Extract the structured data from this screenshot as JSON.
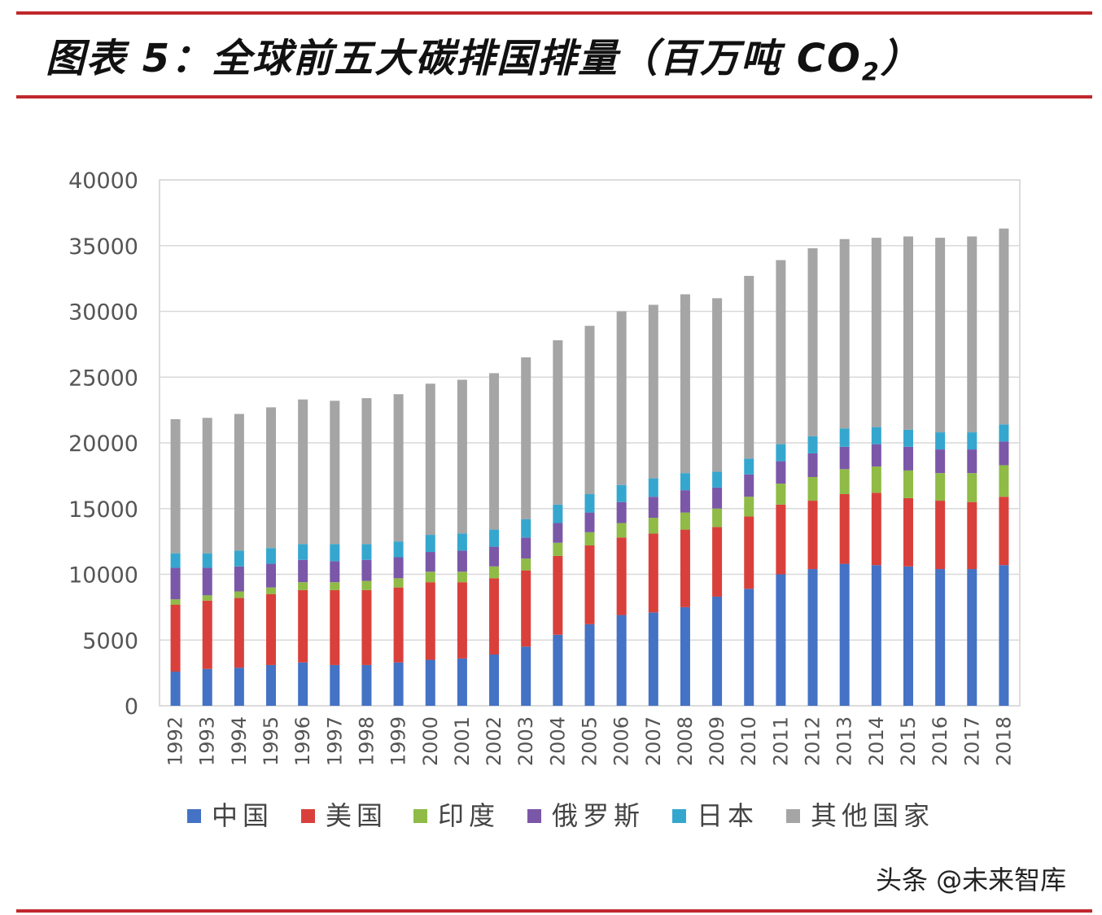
{
  "title": {
    "main": "图表 5：全球前五大碳排国排量（百万吨 CO",
    "sub": "2",
    "close": "）"
  },
  "watermark": "头条 @未来智库",
  "chart_data": {
    "type": "bar",
    "stacked": true,
    "categories": [
      "1992",
      "1993",
      "1994",
      "1995",
      "1996",
      "1997",
      "1998",
      "1999",
      "2000",
      "2001",
      "2002",
      "2003",
      "2004",
      "2005",
      "2006",
      "2007",
      "2008",
      "2009",
      "2010",
      "2011",
      "2012",
      "2013",
      "2014",
      "2015",
      "2016",
      "2017",
      "2018"
    ],
    "series": [
      {
        "name": "中国",
        "color": "#4472c4",
        "values": [
          2600,
          2800,
          2900,
          3100,
          3300,
          3100,
          3100,
          3300,
          3500,
          3600,
          3900,
          4500,
          5400,
          6200,
          6900,
          7100,
          7500,
          8300,
          8900,
          10000,
          10400,
          10800,
          10700,
          10600,
          10400,
          10400,
          10700
        ]
      },
      {
        "name": "美国",
        "color": "#d9403b",
        "values": [
          5100,
          5200,
          5300,
          5400,
          5500,
          5700,
          5700,
          5700,
          5900,
          5800,
          5800,
          5800,
          6000,
          6000,
          5900,
          6000,
          5900,
          5300,
          5500,
          5300,
          5200,
          5300,
          5500,
          5200,
          5200,
          5100,
          5200
        ]
      },
      {
        "name": "印度",
        "color": "#8fbb46",
        "values": [
          400,
          400,
          500,
          500,
          600,
          600,
          700,
          700,
          800,
          800,
          900,
          900,
          1000,
          1000,
          1100,
          1200,
          1300,
          1400,
          1500,
          1600,
          1800,
          1900,
          2000,
          2100,
          2100,
          2200,
          2400
        ]
      },
      {
        "name": "俄罗斯",
        "color": "#7b57a8",
        "values": [
          2400,
          2100,
          1900,
          1800,
          1700,
          1600,
          1600,
          1600,
          1500,
          1600,
          1500,
          1600,
          1500,
          1500,
          1600,
          1600,
          1700,
          1600,
          1700,
          1700,
          1800,
          1700,
          1700,
          1800,
          1800,
          1800,
          1800
        ]
      },
      {
        "name": "日本",
        "color": "#35a7cf",
        "values": [
          1100,
          1100,
          1200,
          1200,
          1200,
          1300,
          1200,
          1200,
          1300,
          1300,
          1300,
          1400,
          1400,
          1400,
          1300,
          1400,
          1300,
          1200,
          1200,
          1300,
          1300,
          1400,
          1300,
          1300,
          1300,
          1300,
          1300
        ]
      },
      {
        "name": "其他国家",
        "color": "#a5a5a5",
        "values": [
          10200,
          10300,
          10400,
          10700,
          11000,
          10900,
          11100,
          11200,
          11500,
          11700,
          11900,
          12300,
          12500,
          12800,
          13200,
          13200,
          13600,
          13200,
          13900,
          14000,
          14300,
          14400,
          14400,
          14700,
          14800,
          14900,
          14900
        ]
      }
    ],
    "xlabel": "",
    "ylabel": "",
    "ylim": [
      0,
      40000
    ],
    "yticks": [
      "0",
      "5000",
      "10000",
      "15000",
      "20000",
      "25000",
      "30000",
      "35000",
      "40000"
    ],
    "grid": true,
    "legend_position": "bottom"
  }
}
